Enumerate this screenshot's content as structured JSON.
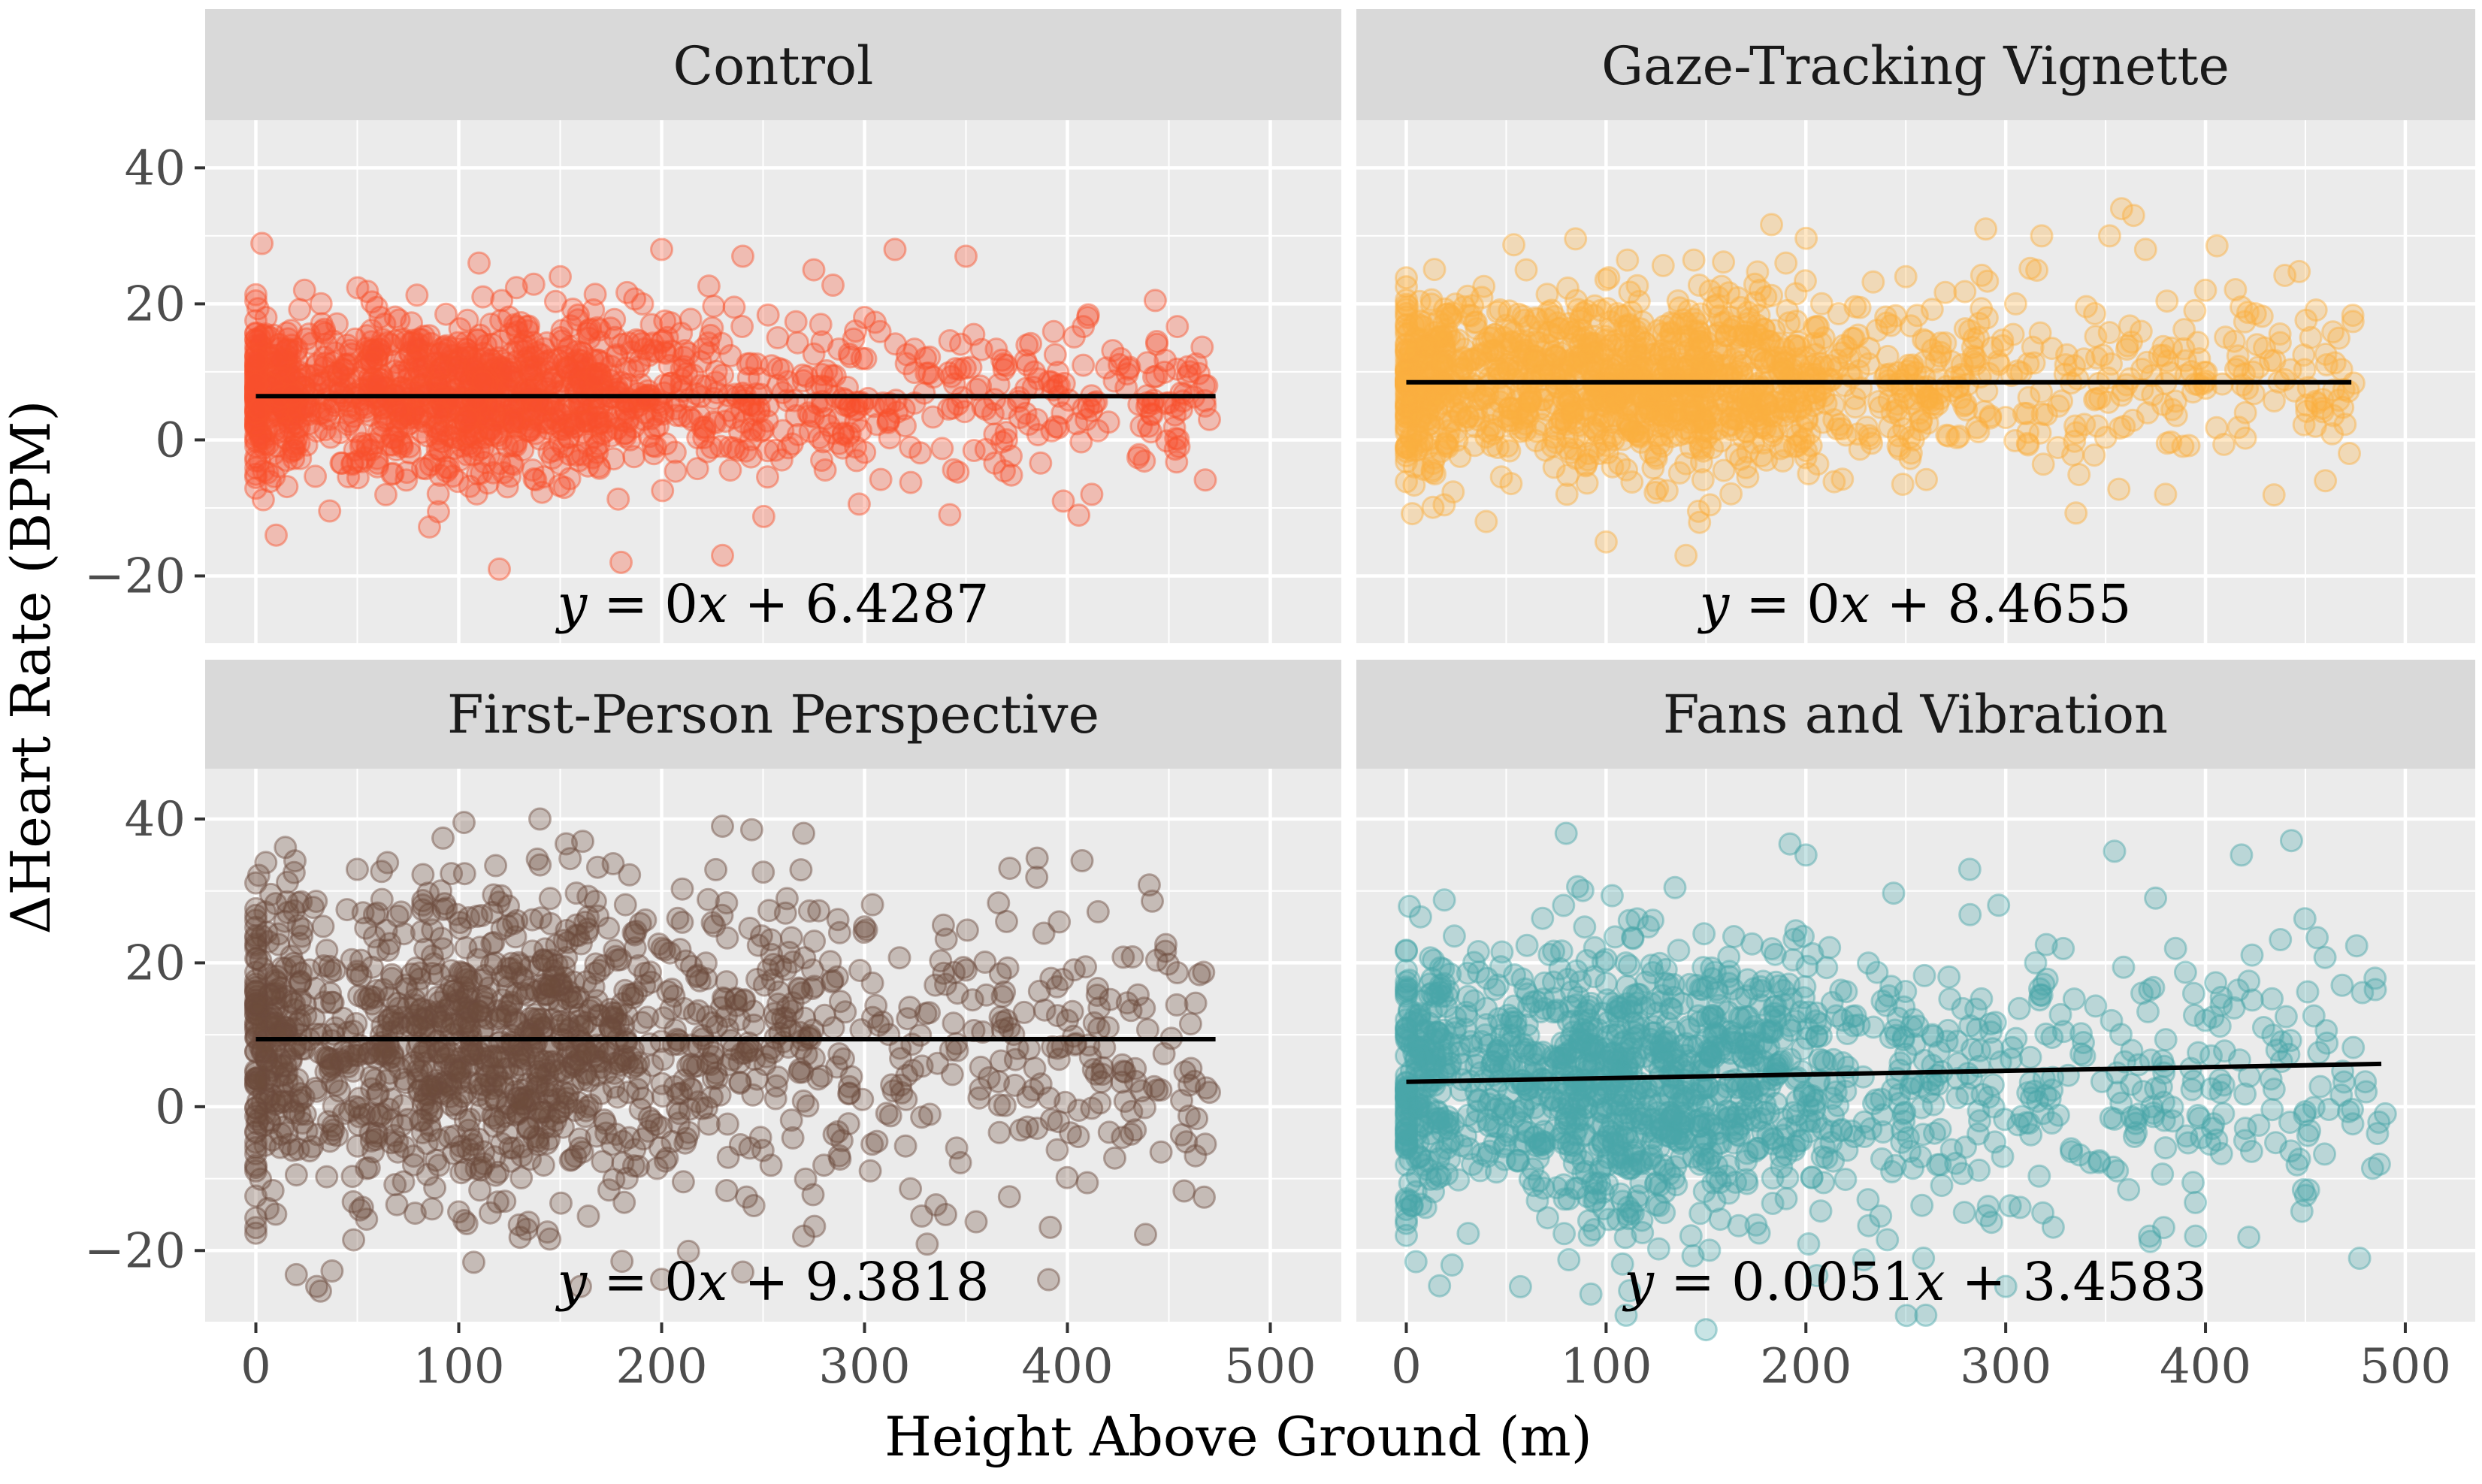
{
  "chart_data": {
    "type": "scatter",
    "xlabel": "Height Above Ground (m)",
    "ylabel": "ΔHeart Rate (BPM)",
    "xlim": [
      -25,
      535
    ],
    "ylim": [
      -30,
      47
    ],
    "x_ticks": [
      0,
      100,
      200,
      300,
      400,
      500
    ],
    "x_tick_labels": [
      "0",
      "100",
      "200",
      "300",
      "400",
      "500"
    ],
    "y_ticks": [
      40,
      20,
      0,
      -20
    ],
    "y_tick_labels": [
      "40",
      "20",
      "0",
      "−20"
    ],
    "panels": [
      {
        "title": "Control",
        "color": "#F8512D",
        "equation": "y = 0x + 6.4287",
        "equation_parts": {
          "y": "y",
          "eq": " = 0",
          "x": "x",
          "rest": " + 6.4287"
        },
        "fit": {
          "slope": 0,
          "intercept": 6.4287,
          "x_range": [
            0,
            473
          ]
        },
        "cloud": {
          "n": 1500,
          "x_max": 470,
          "y_center": 6.4,
          "y_spread": 6.0,
          "y_min": -19,
          "y_max": 30,
          "seed": 11
        },
        "points": [
          [
            2,
            15
          ],
          [
            5,
            18
          ],
          [
            12,
            12
          ],
          [
            24,
            22
          ],
          [
            60,
            8
          ],
          [
            110,
            26
          ],
          [
            150,
            24
          ],
          [
            200,
            28
          ],
          [
            240,
            27
          ],
          [
            275,
            25
          ],
          [
            315,
            28
          ],
          [
            350,
            27
          ],
          [
            470,
            3
          ],
          [
            455,
            -1
          ],
          [
            412,
            -8
          ],
          [
            398,
            -9
          ],
          [
            370,
            0
          ],
          [
            342,
            -11
          ],
          [
            230,
            -17
          ],
          [
            180,
            -18
          ],
          [
            120,
            -19
          ],
          [
            10,
            -14
          ],
          [
            330,
            12
          ],
          [
            300,
            18
          ],
          [
            410,
            18
          ],
          [
            395,
            8
          ],
          [
            440,
            2
          ]
        ]
      },
      {
        "title": "Gaze-Tracking Vignette",
        "color": "#FBB040",
        "equation": "y = 0x + 8.4655",
        "equation_parts": {
          "y": "y",
          "eq": " = 0",
          "x": "x",
          "rest": " + 8.4655"
        },
        "fit": {
          "slope": 0,
          "intercept": 8.4655,
          "x_range": [
            0,
            473
          ]
        },
        "cloud": {
          "n": 1500,
          "x_max": 475,
          "y_center": 8.5,
          "y_spread": 6.5,
          "y_min": -18,
          "y_max": 34,
          "seed": 23
        },
        "points": [
          [
            358,
            34
          ],
          [
            364,
            33
          ],
          [
            352,
            30
          ],
          [
            318,
            30
          ],
          [
            290,
            31
          ],
          [
            370,
            28
          ],
          [
            400,
            22
          ],
          [
            455,
            2
          ],
          [
            472,
            -2
          ],
          [
            460,
            -6
          ],
          [
            420,
            4
          ],
          [
            380,
            -8
          ],
          [
            305,
            20
          ],
          [
            250,
            24
          ],
          [
            190,
            26
          ],
          [
            140,
            -17
          ],
          [
            100,
            -15
          ],
          [
            40,
            -12
          ],
          [
            60,
            25
          ],
          [
            10,
            14
          ]
        ]
      },
      {
        "title": "First-Person Perspective",
        "color": "#6D4C3D",
        "equation": "y = 0x + 9.3818",
        "equation_parts": {
          "y": "y",
          "eq": " = 0",
          "x": "x",
          "rest": " + 9.3818"
        },
        "fit": {
          "slope": 0,
          "intercept": 9.3818,
          "x_range": [
            0,
            473
          ]
        },
        "cloud": {
          "n": 1500,
          "x_max": 470,
          "y_center": 9.4,
          "y_spread": 11.0,
          "y_min": -26,
          "y_max": 40,
          "seed": 37
        },
        "points": [
          [
            350,
            19
          ],
          [
            340,
            17
          ],
          [
            300,
            25
          ],
          [
            370,
            12
          ],
          [
            400,
            12
          ],
          [
            420,
            11
          ],
          [
            470,
            2
          ],
          [
            460,
            3
          ],
          [
            395,
            -6
          ],
          [
            385,
            -3
          ],
          [
            340,
            -15
          ],
          [
            355,
            -16
          ],
          [
            270,
            -18
          ],
          [
            240,
            -23
          ],
          [
            200,
            -24
          ],
          [
            160,
            -25
          ],
          [
            30,
            -25
          ],
          [
            50,
            33
          ],
          [
            140,
            40
          ],
          [
            230,
            39
          ],
          [
            270,
            38
          ]
        ]
      },
      {
        "title": "Fans and Vibration",
        "color": "#4AA6A8",
        "equation": "y = 0.0051x + 3.4583",
        "equation_parts": {
          "y": "y",
          "eq": " = 0.0051",
          "x": "x",
          "rest": " + 3.4583"
        },
        "fit": {
          "slope": 0.0051,
          "intercept": 3.4583,
          "x_range": [
            0,
            488
          ]
        },
        "cloud": {
          "n": 1500,
          "x_max": 490,
          "y_center": 3.5,
          "y_spread": 10.0,
          "y_min": -31,
          "y_max": 38,
          "seed": 53
        },
        "points": [
          [
            443,
            37
          ],
          [
            418,
            35
          ],
          [
            282,
            33
          ],
          [
            375,
            29
          ],
          [
            385,
            22
          ],
          [
            490,
            -1
          ],
          [
            487,
            -8
          ],
          [
            420,
            -3
          ],
          [
            395,
            -18
          ],
          [
            372,
            -18
          ],
          [
            300,
            -25
          ],
          [
            260,
            -29
          ],
          [
            150,
            -31
          ],
          [
            110,
            -29
          ],
          [
            80,
            38
          ],
          [
            200,
            35
          ],
          [
            315,
            20
          ],
          [
            345,
            14
          ],
          [
            400,
            12
          ]
        ]
      }
    ]
  }
}
